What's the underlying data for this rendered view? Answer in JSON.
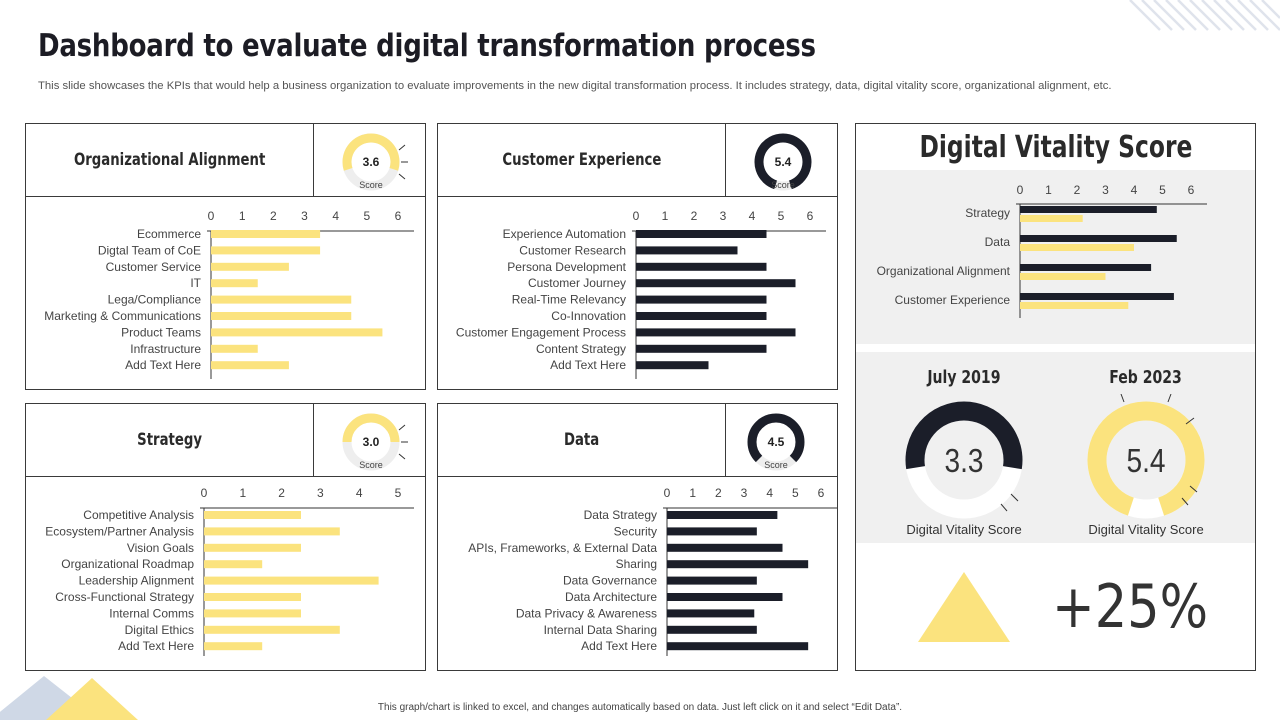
{
  "title": "Dashboard to evaluate digital transformation process",
  "subtitle": "This slide showcases the KPIs that would help a business organization to evaluate improvements in the new digital transformation process. It includes strategy, data, digital vitality  score, organizational alignment, etc.",
  "footer": "This graph/chart is linked to excel, and changes automatically based on data. Just left click on it and select “Edit Data”.",
  "colors": {
    "yellow": "#FBE37E",
    "dark": "#1b1e29",
    "gray_track": "#eeeeee",
    "panel_bg": "#f0f0f0"
  },
  "panels": {
    "org": {
      "title": "Organizational Alignment",
      "score": "3.6",
      "score_label": "Score"
    },
    "cx": {
      "title": "Customer Experience",
      "score": "5.4",
      "score_label": "Score"
    },
    "strategy": {
      "title": "Strategy",
      "score": "3.0",
      "score_label": "Score"
    },
    "data": {
      "title": "Data",
      "score": "4.5",
      "score_label": "Score"
    }
  },
  "vitality": {
    "title": "Digital Vitality Score",
    "left_title": "July 2019",
    "left_value": "3.3",
    "left_label": "Digital Vitality Score",
    "right_title": "Feb 2023",
    "right_value": "5.4",
    "right_label": "Digital Vitality Score",
    "change": "+25%"
  },
  "chart_data": [
    {
      "id": "org",
      "type": "bar",
      "orientation": "horizontal",
      "xlim": [
        0,
        6
      ],
      "ticks": [
        0,
        1,
        2,
        3,
        4,
        5,
        6
      ],
      "categories": [
        "Ecommerce",
        "Digtal Team of CoE",
        "Customer Service",
        "IT",
        "Lega/Compliance",
        "Marketing & Communications",
        "Product Teams",
        "Infrastructure",
        "Add Text Here"
      ],
      "series": [
        {
          "name": "Score",
          "color": "#FBE37E",
          "values": [
            3.5,
            3.5,
            2.5,
            1.5,
            4.5,
            4.5,
            5.5,
            1.5,
            2.5
          ]
        }
      ]
    },
    {
      "id": "cx",
      "type": "bar",
      "orientation": "horizontal",
      "xlim": [
        0,
        6
      ],
      "ticks": [
        0,
        1,
        2,
        3,
        4,
        5,
        6
      ],
      "categories": [
        "Experience Automation",
        "Customer Research",
        "Persona Development",
        "Customer Journey",
        "Real-Time Relevancy",
        "Co-Innovation",
        "Customer Engagement Process",
        "Content Strategy",
        "Add Text Here"
      ],
      "series": [
        {
          "name": "Score",
          "color": "#1b1e29",
          "values": [
            4.5,
            3.5,
            4.5,
            5.5,
            4.5,
            4.5,
            5.5,
            4.5,
            2.5
          ]
        }
      ]
    },
    {
      "id": "strategy",
      "type": "bar",
      "orientation": "horizontal",
      "xlim": [
        0,
        5
      ],
      "ticks": [
        0,
        1,
        2,
        3,
        4,
        5
      ],
      "categories": [
        "Competitive Analysis",
        "Ecosystem/Partner Analysis",
        "Vision Goals",
        "Organizational Roadmap",
        "Leadership Alignment",
        "Cross-Functional Strategy",
        "Internal Comms",
        "Digital Ethics",
        "Add Text Here"
      ],
      "series": [
        {
          "name": "Score",
          "color": "#FBE37E",
          "values": [
            2.5,
            3.5,
            2.5,
            1.5,
            4.5,
            2.5,
            2.5,
            3.5,
            1.5
          ]
        }
      ]
    },
    {
      "id": "data",
      "type": "bar",
      "orientation": "horizontal",
      "xlim": [
        0,
        6
      ],
      "ticks": [
        0,
        1,
        2,
        3,
        4,
        5,
        6
      ],
      "categories": [
        "Data Strategy",
        "Security",
        "APIs, Frameworks, & External Data",
        "Sharing",
        "Data Governance",
        "Data Architecture",
        "Data Privacy & Awareness",
        "Internal Data Sharing",
        "Add Text Here"
      ],
      "series": [
        {
          "name": "Score",
          "color": "#1b1e29",
          "values": [
            4.3,
            3.5,
            4.5,
            5.5,
            3.5,
            4.5,
            3.4,
            3.5,
            5.5
          ]
        }
      ]
    },
    {
      "id": "vitality",
      "type": "bar",
      "orientation": "horizontal",
      "xlim": [
        0,
        6
      ],
      "ticks": [
        0,
        1,
        2,
        3,
        4,
        5,
        6
      ],
      "categories": [
        "Strategy",
        "Data",
        "Organizational Alignment",
        "Customer Experience"
      ],
      "series": [
        {
          "name": "Feb 2023",
          "color": "#1b1e29",
          "values": [
            4.8,
            5.5,
            4.6,
            5.4
          ]
        },
        {
          "name": "July 2019",
          "color": "#FBE37E",
          "values": [
            2.2,
            4.0,
            3.0,
            3.8
          ]
        }
      ]
    },
    {
      "id": "gauges",
      "type": "pie",
      "categories": [
        "Organizational Alignment",
        "Customer Experience",
        "Strategy",
        "Data",
        "July 2019",
        "Feb 2023"
      ],
      "values": [
        3.6,
        5.4,
        3.0,
        4.5,
        3.3,
        5.4
      ],
      "max": 6
    }
  ]
}
